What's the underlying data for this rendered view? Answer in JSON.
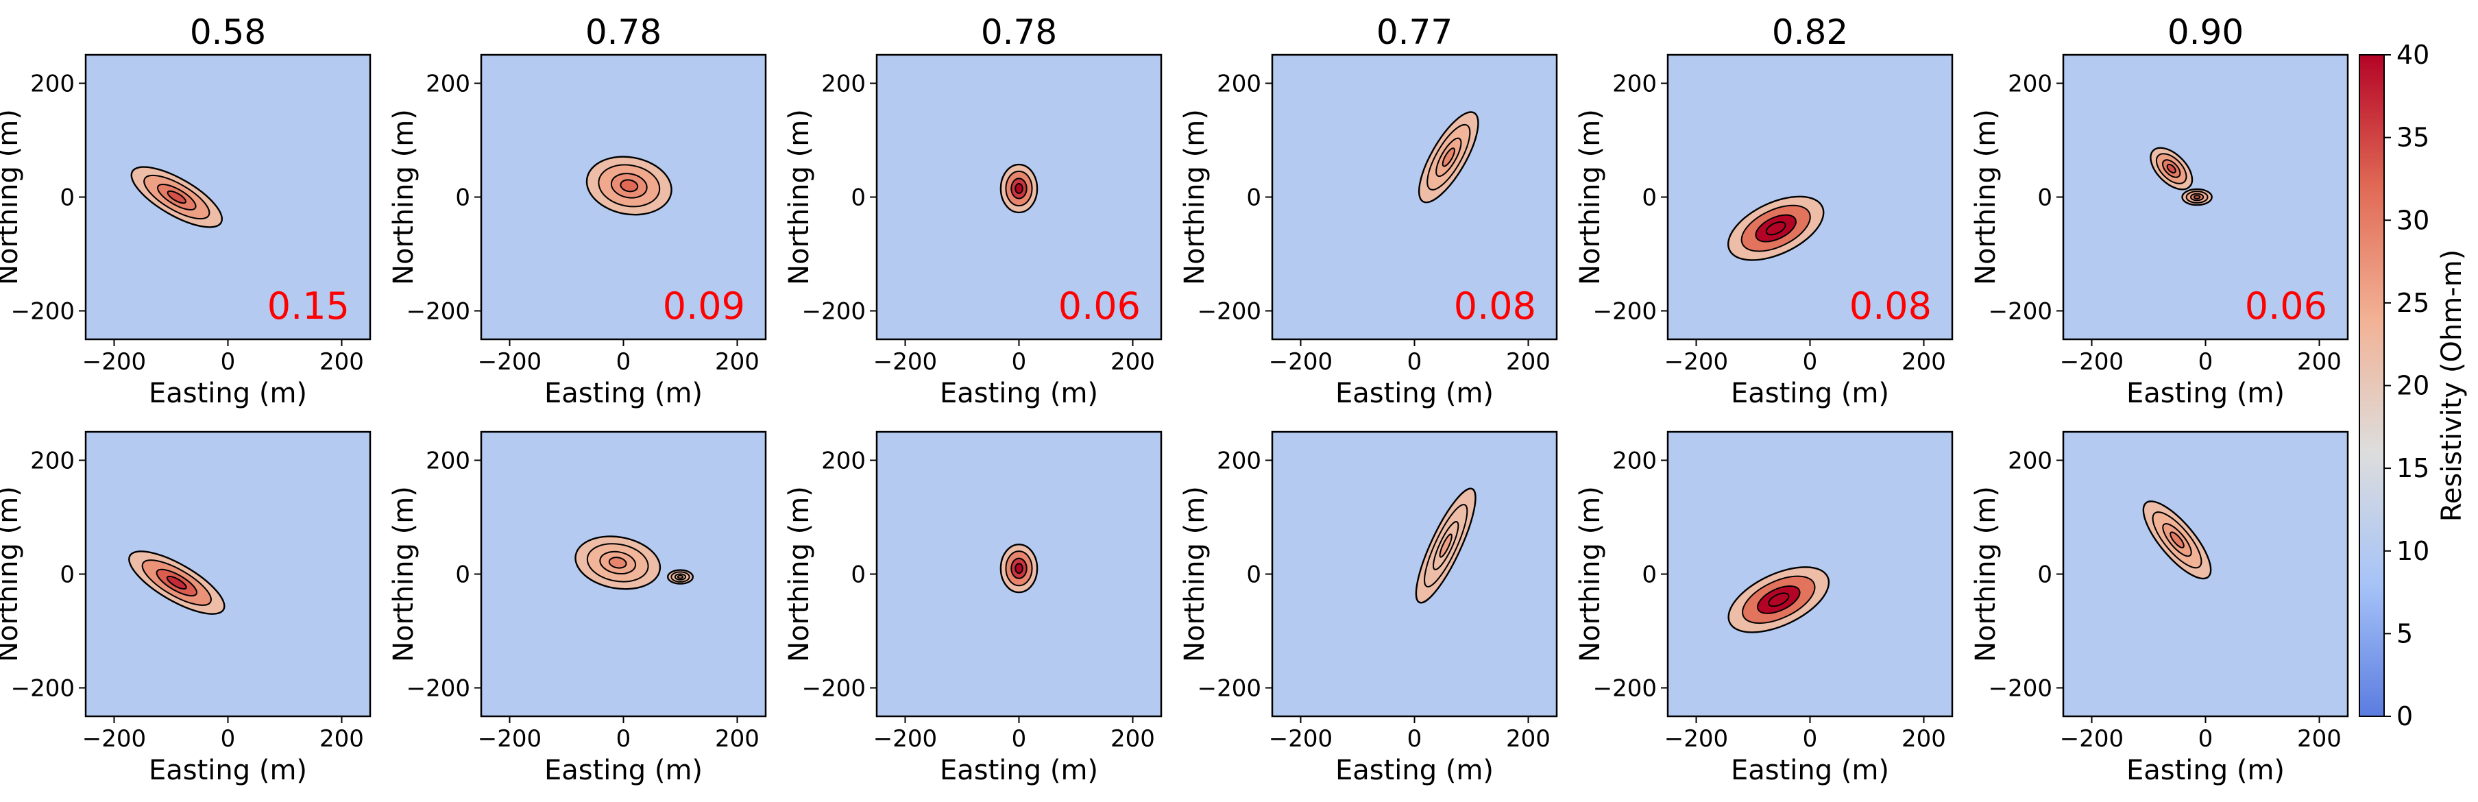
{
  "chart_data": {
    "type": "heatmap",
    "description_free": true,
    "xlabel": "Easting (m)",
    "ylabel": "Northing (m)",
    "xlim": [
      -250,
      250
    ],
    "ylim": [
      -250,
      250
    ],
    "xticks": [
      -200,
      0,
      200
    ],
    "yticks": [
      -200,
      0,
      200
    ],
    "colorbar": {
      "label": "Resistivity (Ohm-m)",
      "min": 0,
      "max": 40,
      "ticks": [
        0,
        5,
        10,
        15,
        20,
        25,
        30,
        35,
        40
      ],
      "colors": [
        "#5b7ce0",
        "#a6c3f7",
        "#dddddd",
        "#f2b295",
        "#e06a55",
        "#b40426"
      ]
    },
    "background_value": 10,
    "titles": [
      "0.58",
      "0.78",
      "0.78",
      "0.77",
      "0.82",
      "0.90"
    ],
    "scores": [
      "0.15",
      "0.09",
      "0.06",
      "0.08",
      "0.08",
      "0.06"
    ],
    "panels": [
      {
        "row": "top",
        "col": 0,
        "blob": {
          "cx": -90,
          "cy": 0,
          "rx": 90,
          "ry": 32,
          "angle_deg": -30,
          "peak": 30
        }
      },
      {
        "row": "top",
        "col": 1,
        "blob": {
          "cx": 10,
          "cy": 20,
          "rx": 75,
          "ry": 50,
          "angle_deg": -10,
          "peak": 28
        }
      },
      {
        "row": "top",
        "col": 2,
        "blob": {
          "cx": 0,
          "cy": 15,
          "rx": 32,
          "ry": 42,
          "angle_deg": 0,
          "peak": 36
        }
      },
      {
        "row": "top",
        "col": 3,
        "blob": {
          "cx": 60,
          "cy": 70,
          "rx": 90,
          "ry": 30,
          "angle_deg": 60,
          "peak": 25
        }
      },
      {
        "row": "top",
        "col": 4,
        "blob": {
          "cx": -60,
          "cy": -55,
          "rx": 90,
          "ry": 45,
          "angle_deg": 25,
          "peak": 40
        }
      },
      {
        "row": "top",
        "col": 5,
        "blob": {
          "cx": -60,
          "cy": 50,
          "rx": 45,
          "ry": 25,
          "angle_deg": -45,
          "peak": 30
        },
        "extra": {
          "cx": -15,
          "cy": 0,
          "rx": 26,
          "ry": 14,
          "angle_deg": 0,
          "peak": 28
        }
      },
      {
        "row": "bottom",
        "col": 0,
        "blob": {
          "cx": -90,
          "cy": -15,
          "rx": 95,
          "ry": 32,
          "angle_deg": -30,
          "peak": 33
        }
      },
      {
        "row": "bottom",
        "col": 1,
        "blob": {
          "cx": -10,
          "cy": 20,
          "rx": 75,
          "ry": 45,
          "angle_deg": -10,
          "peak": 25
        },
        "extra": {
          "cx": 100,
          "cy": -5,
          "rx": 22,
          "ry": 12,
          "angle_deg": 0,
          "peak": 22
        }
      },
      {
        "row": "bottom",
        "col": 2,
        "blob": {
          "cx": 0,
          "cy": 10,
          "rx": 32,
          "ry": 42,
          "angle_deg": 0,
          "peak": 36
        }
      },
      {
        "row": "bottom",
        "col": 3,
        "blob": {
          "cx": 55,
          "cy": 50,
          "rx": 110,
          "ry": 26,
          "angle_deg": 65,
          "peak": 22
        }
      },
      {
        "row": "bottom",
        "col": 4,
        "blob": {
          "cx": -55,
          "cy": -45,
          "rx": 95,
          "ry": 45,
          "angle_deg": 25,
          "peak": 40
        }
      },
      {
        "row": "bottom",
        "col": 5,
        "blob": {
          "cx": -50,
          "cy": 60,
          "rx": 85,
          "ry": 30,
          "angle_deg": -50,
          "peak": 26
        }
      }
    ]
  }
}
